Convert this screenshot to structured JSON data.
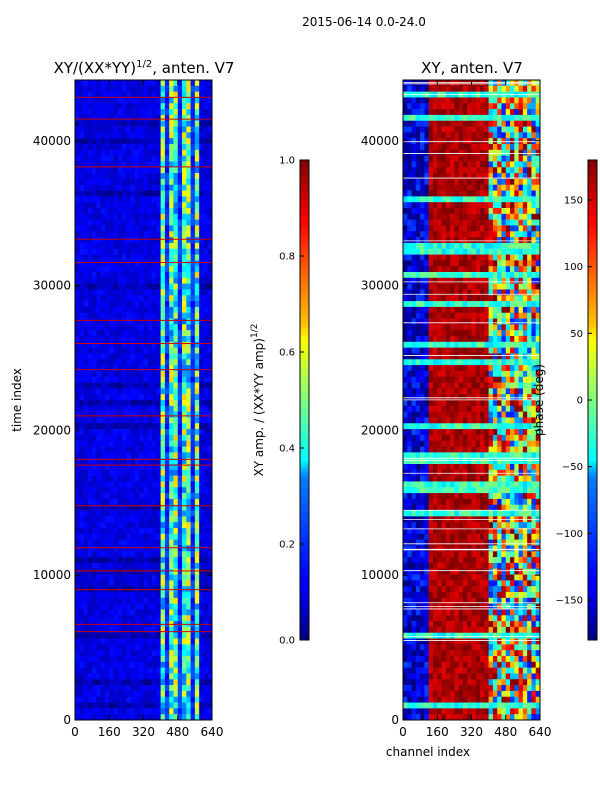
{
  "suptitle": "2015-06-14 0.0-24.0",
  "chart_data": [
    {
      "type": "heatmap",
      "title": "XY/(XX*YY)^{1/2}, anten. V7",
      "title_main": "XY/(XX*YY)",
      "title_sup": "1/2",
      "title_tail": ", anten. V7",
      "xlabel": "",
      "ylabel": "time index",
      "xlim": [
        0,
        640
      ],
      "ylim": [
        0,
        44200
      ],
      "xticks": [
        "0",
        "160",
        "320",
        "480",
        "640"
      ],
      "xtick_values": [
        0,
        160,
        320,
        480,
        640
      ],
      "yticks": [
        "0",
        "10000",
        "20000",
        "30000",
        "40000"
      ],
      "ytick_values": [
        0,
        10000,
        20000,
        30000,
        40000
      ],
      "colorbar": {
        "label": "XY amp. / (XX*YY amp)^{1/2}",
        "label_main": "XY amp. / (XX*YY amp)",
        "label_sup": "1/2",
        "range": [
          0.0,
          1.0
        ],
        "ticks": [
          "0.0",
          "0.2",
          "0.4",
          "0.6",
          "0.8",
          "1.0"
        ],
        "tick_values": [
          0.0,
          0.2,
          0.4,
          0.6,
          0.8,
          1.0
        ]
      },
      "colormap": "jet",
      "description_values": {
        "background_level": 0.1,
        "high_channel_range": [
          400,
          580
        ],
        "high_level": 0.45,
        "flag_line_times": [
          6100,
          6600,
          9000,
          10300,
          11900,
          14800,
          17600,
          18000,
          21000,
          24200,
          26000,
          27600,
          31600,
          33200,
          38200,
          41500,
          43000
        ]
      }
    },
    {
      "type": "heatmap",
      "title": "XY, anten. V7",
      "xlabel": "channel index",
      "ylabel": "",
      "xlim": [
        0,
        640
      ],
      "ylim": [
        0,
        44200
      ],
      "xticks": [
        "0",
        "160",
        "320",
        "480",
        "640"
      ],
      "xtick_values": [
        0,
        160,
        320,
        480,
        640
      ],
      "yticks": [
        "0",
        "10000",
        "20000",
        "30000",
        "40000"
      ],
      "ytick_values": [
        0,
        10000,
        20000,
        30000,
        40000
      ],
      "colorbar": {
        "label": "phase (deg)",
        "range": [
          -180,
          180
        ],
        "ticks": [
          "−150",
          "−100",
          "−50",
          "0",
          "50",
          "100",
          "150"
        ],
        "tick_values": [
          -150,
          -100,
          -50,
          0,
          50,
          100,
          150
        ]
      },
      "colormap": "jet",
      "description_values": {
        "low_channel_phase": -150,
        "mid_channel_range": [
          120,
          400
        ],
        "mid_phase": 165,
        "high_channel_range": [
          400,
          600
        ],
        "high_phase": 30
      }
    }
  ]
}
